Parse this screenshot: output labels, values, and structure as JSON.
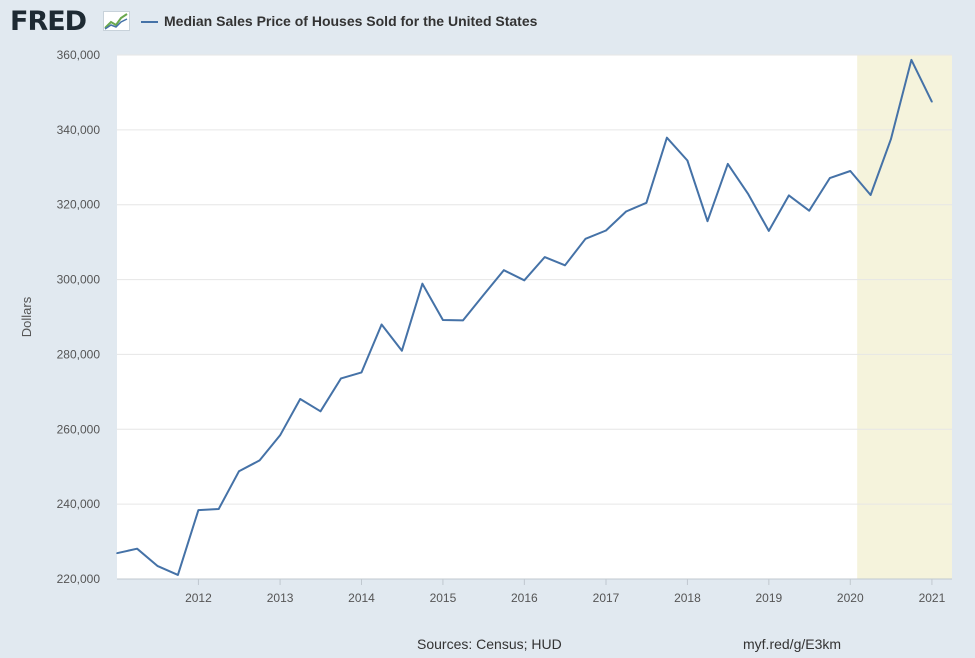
{
  "header": {
    "logo_text": "FRED",
    "legend_label": "Median Sales Price of Houses Sold for the United States"
  },
  "footer": {
    "sources": "Sources: Census; HUD",
    "link": "myf.red/g/E3km"
  },
  "colors": {
    "line": "#4572a7",
    "recession": "#f5f3dc",
    "plot_bg": "#ffffff",
    "page_bg": "#e1e9f0"
  },
  "chart_data": {
    "type": "line",
    "title": "",
    "xlabel": "",
    "ylabel": "Dollars",
    "ylim": [
      220000,
      360000
    ],
    "xlim": [
      "2011-01-01",
      "2021-04-01"
    ],
    "yticks": [
      220000,
      240000,
      260000,
      280000,
      300000,
      320000,
      340000,
      360000
    ],
    "ytick_labels": [
      "220,000",
      "240,000",
      "260,000",
      "280,000",
      "300,000",
      "320,000",
      "340,000",
      "360,000"
    ],
    "xtick_labels": [
      "2012",
      "2013",
      "2014",
      "2015",
      "2016",
      "2017",
      "2018",
      "2019",
      "2020",
      "2021"
    ],
    "grid": true,
    "recession_shading": [
      {
        "start": "2020-02-01",
        "end": "2021-04-01"
      }
    ],
    "series": [
      {
        "name": "Median Sales Price of Houses Sold for the United States",
        "x": [
          "2011-01-01",
          "2011-04-01",
          "2011-07-01",
          "2011-10-01",
          "2012-01-01",
          "2012-04-01",
          "2012-07-01",
          "2012-10-01",
          "2013-01-01",
          "2013-04-01",
          "2013-07-01",
          "2013-10-01",
          "2014-01-01",
          "2014-04-01",
          "2014-07-01",
          "2014-10-01",
          "2015-01-01",
          "2015-04-01",
          "2015-07-01",
          "2015-10-01",
          "2016-01-01",
          "2016-04-01",
          "2016-07-01",
          "2016-10-01",
          "2017-01-01",
          "2017-04-01",
          "2017-07-01",
          "2017-10-01",
          "2018-01-01",
          "2018-04-01",
          "2018-07-01",
          "2018-10-01",
          "2019-01-01",
          "2019-04-01",
          "2019-07-01",
          "2019-10-01",
          "2020-01-01",
          "2020-04-01",
          "2020-07-01",
          "2020-10-01",
          "2021-01-01"
        ],
        "values": [
          226900,
          228100,
          223500,
          221100,
          238400,
          238700,
          248800,
          251700,
          258400,
          268100,
          264800,
          273600,
          275200,
          288000,
          281000,
          298900,
          289200,
          289100,
          295800,
          302500,
          299800,
          306000,
          303800,
          310900,
          313100,
          318200,
          320500,
          337900,
          331800,
          315600,
          330900,
          322800,
          313000,
          322500,
          318400,
          327100,
          329000,
          322600,
          337500,
          358700,
          347500
        ]
      }
    ]
  }
}
